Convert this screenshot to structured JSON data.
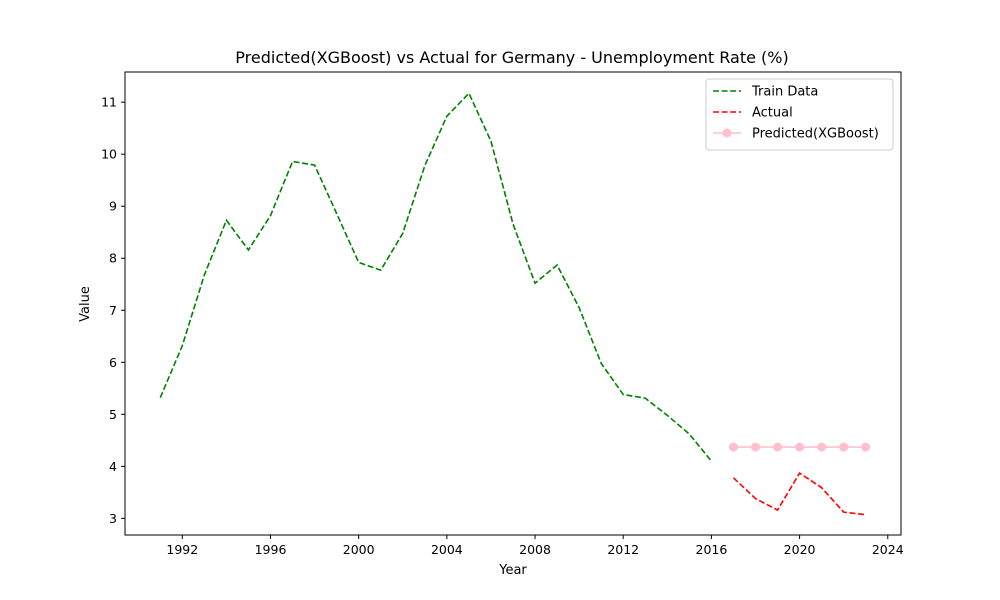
{
  "chart_data": {
    "type": "line",
    "title": "Predicted(XGBoost) vs Actual for Germany - Unemployment Rate (%)",
    "xlabel": "Year",
    "ylabel": "Value",
    "xlim": [
      1989.4,
      2024.6
    ],
    "ylim": [
      2.68,
      11.58
    ],
    "x_ticks": [
      1992,
      1996,
      2000,
      2004,
      2008,
      2012,
      2016,
      2020,
      2024
    ],
    "y_ticks": [
      3,
      4,
      5,
      6,
      7,
      8,
      9,
      10,
      11
    ],
    "grid": false,
    "legend_position": "top-right",
    "series": [
      {
        "name": "Train Data",
        "color": "#008000",
        "style": "dashed",
        "marker": "none",
        "x": [
          1991,
          1992,
          1993,
          1994,
          1995,
          1996,
          1997,
          1998,
          1999,
          2000,
          2001,
          2002,
          2003,
          2004,
          2005,
          2006,
          2007,
          2008,
          2009,
          2010,
          2011,
          2012,
          2013,
          2014,
          2015,
          2016
        ],
        "y": [
          5.32,
          6.32,
          7.68,
          8.73,
          8.16,
          8.82,
          9.86,
          9.79,
          8.86,
          7.92,
          7.77,
          8.48,
          9.78,
          10.73,
          11.17,
          10.25,
          8.66,
          7.52,
          7.87,
          7.05,
          5.98,
          5.38,
          5.31,
          4.98,
          4.62,
          4.1
        ]
      },
      {
        "name": "Actual",
        "color": "#ff0000",
        "style": "dashed",
        "marker": "none",
        "x": [
          2017,
          2018,
          2019,
          2020,
          2021,
          2022,
          2023
        ],
        "y": [
          3.78,
          3.38,
          3.16,
          3.87,
          3.59,
          3.12,
          3.07
        ]
      },
      {
        "name": "Predicted(XGBoost)",
        "color": "#ffc0cb",
        "style": "solid",
        "marker": "circle",
        "x": [
          2017,
          2018,
          2019,
          2020,
          2021,
          2022,
          2023
        ],
        "y": [
          4.37,
          4.37,
          4.37,
          4.37,
          4.37,
          4.37,
          4.37
        ]
      }
    ]
  }
}
